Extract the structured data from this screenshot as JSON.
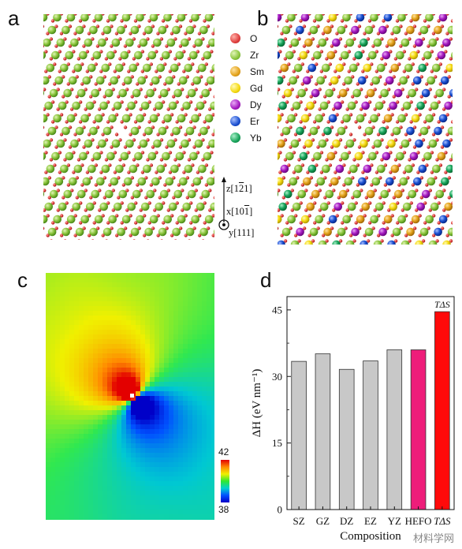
{
  "panels": {
    "a": "a",
    "b": "b",
    "c": "c",
    "d": "d"
  },
  "legend": [
    {
      "label": "O",
      "color": "#e0403f"
    },
    {
      "label": "Zr",
      "color": "#8cc63e"
    },
    {
      "label": "Sm",
      "color": "#e3a21a"
    },
    {
      "label": "Gd",
      "color": "#f5d90f"
    },
    {
      "label": "Dy",
      "color": "#a418c0"
    },
    {
      "label": "Er",
      "color": "#1a4fd0"
    },
    {
      "label": "Yb",
      "color": "#18a35a"
    }
  ],
  "axes_text": {
    "z": "z[1",
    "z_bar": "2",
    "z_end": "1]",
    "x": "x[10",
    "x_bar": "1",
    "x_end": "]",
    "y": "y[111]"
  },
  "colorbar": {
    "max_label": "42",
    "min_label": "38",
    "range": [
      38,
      42
    ]
  },
  "watermark": "材料学网",
  "chart_data": {
    "type": "bar",
    "categories": [
      "SZ",
      "GZ",
      "DZ",
      "EZ",
      "YZ",
      "HEFO",
      "TΔS"
    ],
    "values": [
      33.4,
      35.1,
      31.6,
      33.5,
      36.0,
      36.0,
      44.6
    ],
    "colors": [
      "#c8c8c8",
      "#c8c8c8",
      "#c8c8c8",
      "#c8c8c8",
      "#c8c8c8",
      "#ee1d7a",
      "#ff0a0a"
    ],
    "annotation": {
      "text": "TΔS",
      "category": "TΔS"
    },
    "xlabel": "Composition",
    "ylabel": "ΔH (eV nm⁻¹)",
    "ylim": [
      0,
      48
    ],
    "yticks": [
      0,
      15,
      30,
      45
    ]
  }
}
